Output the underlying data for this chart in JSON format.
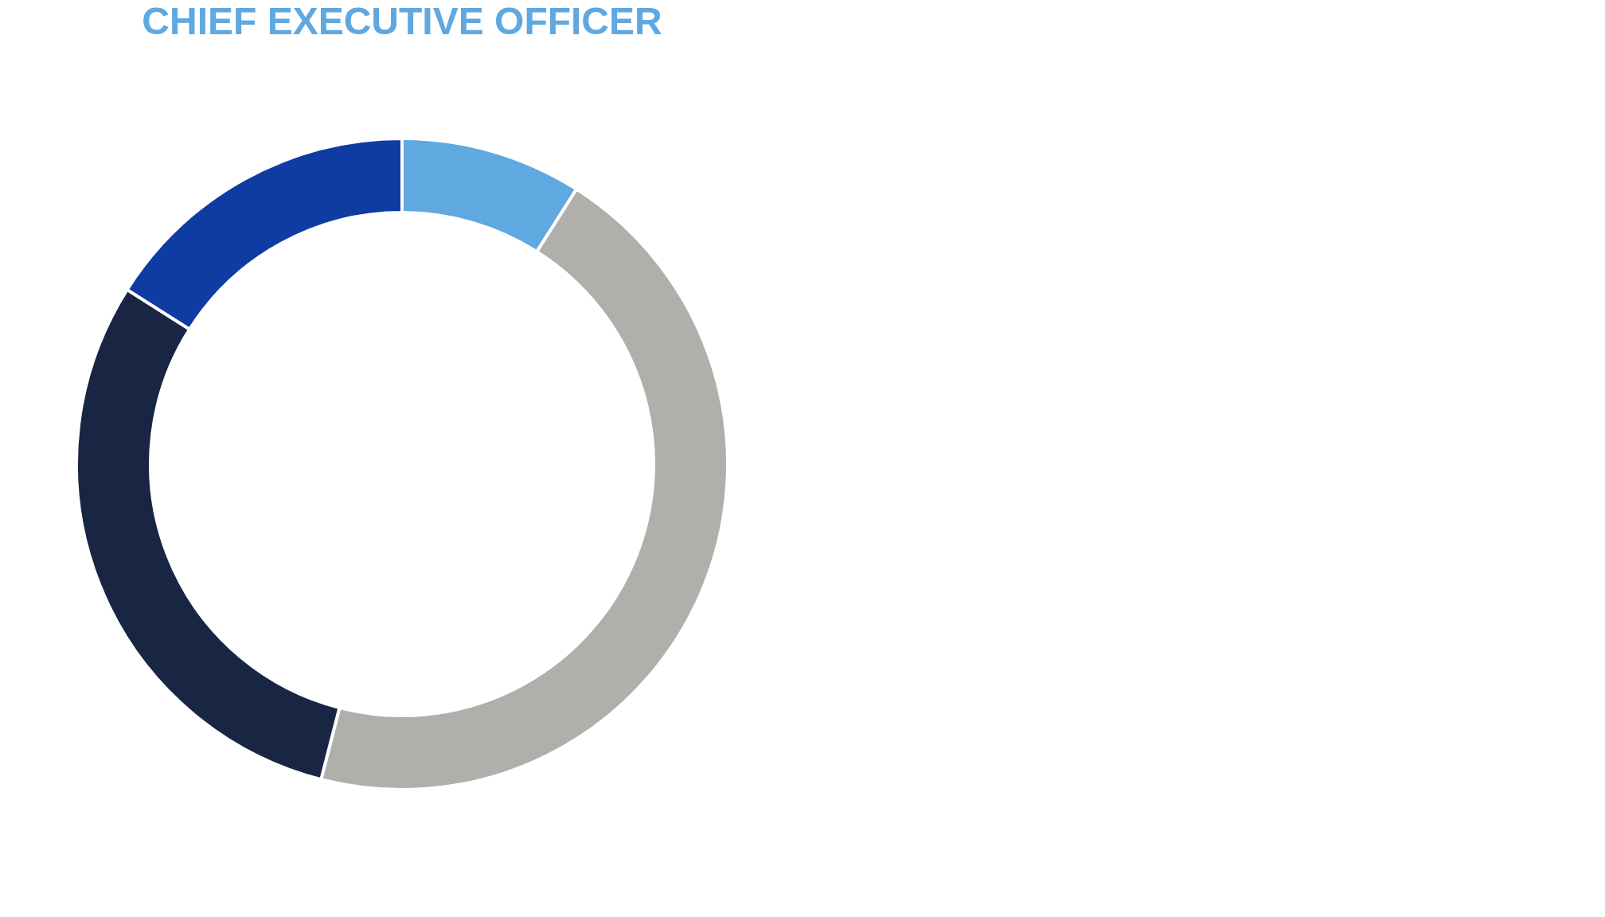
{
  "chart_data": {
    "type": "donut",
    "title": "CHIEF EXECUTIVE OFFICER",
    "categories": [
      null,
      null,
      null,
      null
    ],
    "values": [
      9,
      45,
      30,
      16
    ],
    "colors": [
      "#5fa8e0",
      "#afafab",
      "#182644",
      "#0f3ca3"
    ],
    "legend": false
  }
}
